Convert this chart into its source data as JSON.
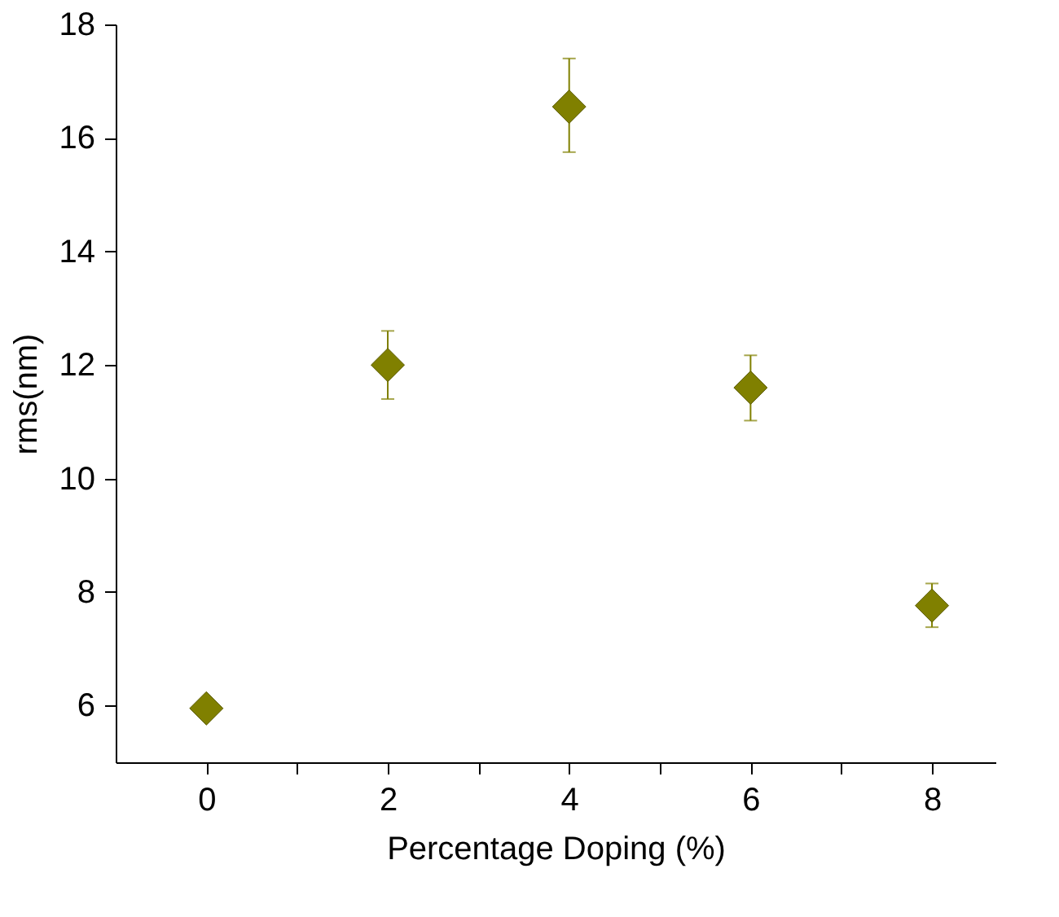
{
  "chart_data": {
    "type": "scatter",
    "xlabel": "Percentage Doping (%)",
    "ylabel": "rms(nm)",
    "x": [
      0,
      2,
      4,
      6,
      8
    ],
    "series": [
      {
        "color": "#808000",
        "values": [
          5.95,
          12.0,
          16.55,
          11.6,
          7.76
        ],
        "errors": [
          null,
          [
            11.4,
            12.6
          ],
          [
            15.75,
            17.4
          ],
          [
            11.02,
            12.17
          ],
          [
            7.38,
            8.15
          ]
        ]
      }
    ],
    "marker": "diamond",
    "grid": false,
    "legend": false,
    "xlim": [
      -1,
      8.7
    ],
    "xticks": [
      0,
      {
        "value": 1,
        "label": null
      },
      2,
      {
        "value": 3,
        "label": null
      },
      4,
      {
        "value": 5,
        "label": null
      },
      6,
      {
        "value": 7,
        "label": null
      },
      8
    ],
    "ylim": [
      5,
      18
    ],
    "yticks": [
      6,
      8,
      10,
      12,
      14,
      16,
      18
    ]
  }
}
